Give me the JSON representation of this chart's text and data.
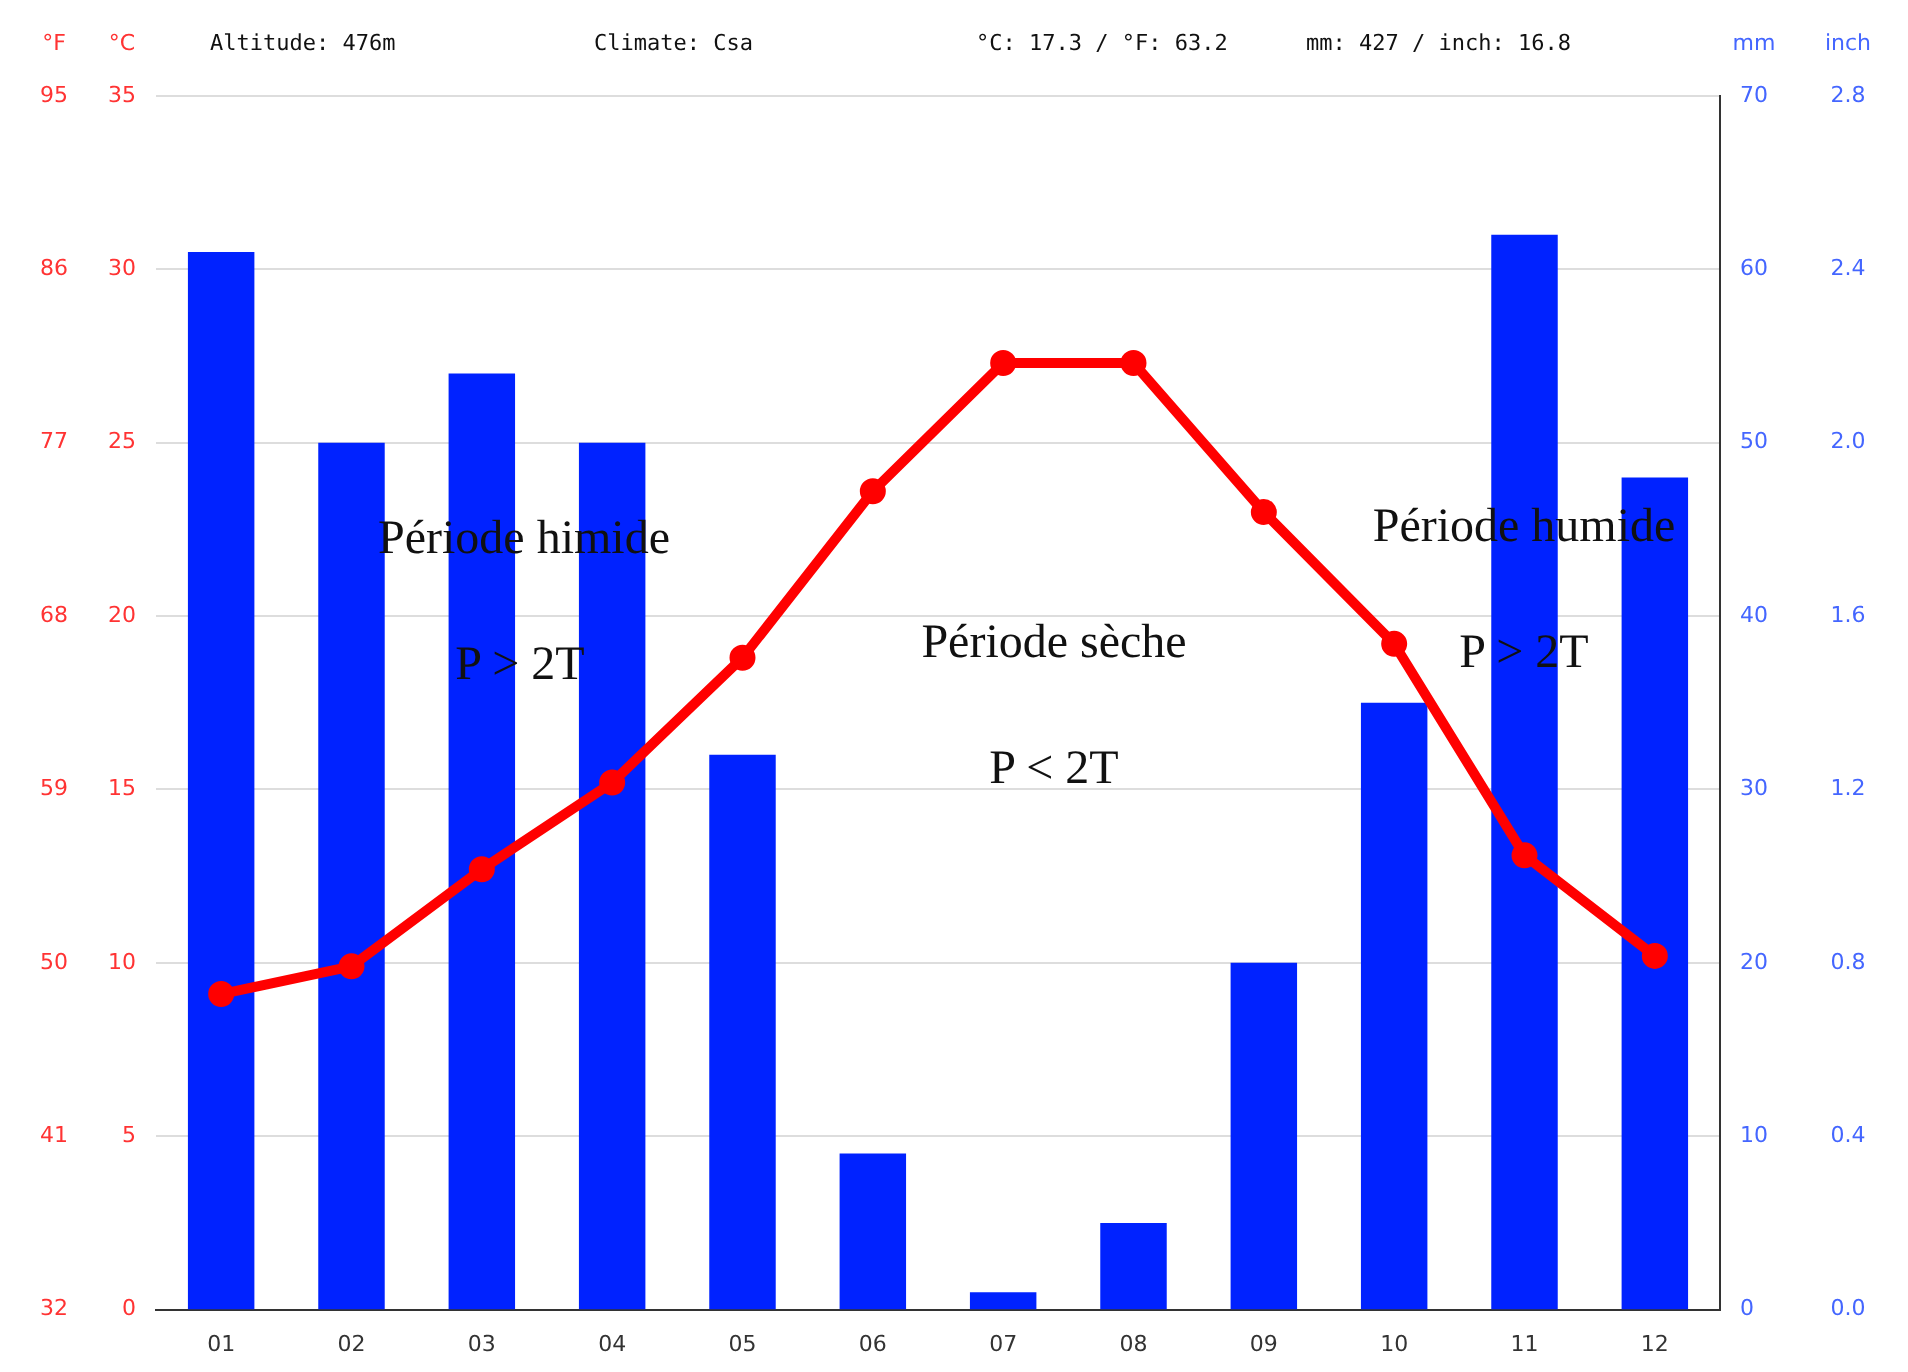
{
  "chart_data": {
    "type": "bar",
    "categories": [
      "01",
      "02",
      "03",
      "04",
      "05",
      "06",
      "07",
      "08",
      "09",
      "10",
      "11",
      "12"
    ],
    "series": [
      {
        "axis": "y2",
        "color": "#0022ff",
        "values": [
          61,
          50,
          54,
          50,
          32,
          9,
          1,
          5,
          20,
          35,
          62,
          48
        ]
      },
      {
        "type": "line",
        "axis": "y",
        "color": "#ff0000",
        "marker": "circle",
        "values": [
          9.1,
          9.9,
          12.7,
          15.2,
          18.8,
          23.6,
          27.3,
          27.3,
          23.0,
          19.2,
          13.1,
          10.2
        ]
      }
    ],
    "ylabel": "°C",
    "y2label": "mm",
    "y3label": "°F",
    "ylim": [
      0,
      35
    ],
    "yticks": [
      0,
      5,
      10,
      15,
      20,
      25,
      30,
      35
    ],
    "y2lim": [
      0,
      70
    ],
    "y2ticks": [
      0,
      10,
      20,
      30,
      40,
      50,
      60,
      70
    ],
    "y3lim": [
      32,
      95
    ],
    "y3ticks": [
      32,
      41,
      50,
      59,
      68,
      77,
      86,
      95
    ],
    "grid": "y",
    "legend": false,
    "annotations": [
      "Altitude: 476m",
      "Climate: Csa",
      "°C: 17.3 / °F: 63.2",
      "mm: 427 / inch: 16.8",
      "Période himide",
      "P > 2T",
      "Période sèche",
      "P < 2T",
      "Période humide",
      "P > 2T",
      "inch",
      "0.0",
      "0.4",
      "0.8",
      "1.2",
      "1.6",
      "2.0",
      "2.4",
      "2.8"
    ]
  }
}
